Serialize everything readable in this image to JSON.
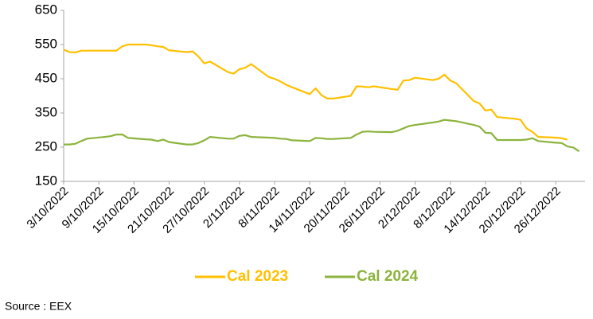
{
  "chart_data": {
    "type": "line",
    "x": [
      "3/10/2022",
      "4/10/2022",
      "5/10/2022",
      "6/10/2022",
      "7/10/2022",
      "10/10/2022",
      "11/10/2022",
      "12/10/2022",
      "13/10/2022",
      "14/10/2022",
      "17/10/2022",
      "18/10/2022",
      "19/10/2022",
      "20/10/2022",
      "21/10/2022",
      "24/10/2022",
      "25/10/2022",
      "26/10/2022",
      "27/10/2022",
      "28/10/2022",
      "31/10/2022",
      "1/11/2022",
      "2/11/2022",
      "3/11/2022",
      "4/11/2022",
      "7/11/2022",
      "8/11/2022",
      "9/11/2022",
      "10/11/2022",
      "11/11/2022",
      "14/11/2022",
      "15/11/2022",
      "16/11/2022",
      "17/11/2022",
      "18/11/2022",
      "21/11/2022",
      "22/11/2022",
      "23/11/2022",
      "24/11/2022",
      "25/11/2022",
      "28/11/2022",
      "29/11/2022",
      "30/11/2022",
      "1/12/2022",
      "2/12/2022",
      "5/12/2022",
      "6/12/2022",
      "7/12/2022",
      "8/12/2022",
      "9/12/2022",
      "12/12/2022",
      "13/12/2022",
      "14/12/2022",
      "15/12/2022",
      "16/12/2022",
      "19/12/2022",
      "20/12/2022",
      "21/12/2022",
      "22/12/2022",
      "23/12/2022",
      "26/12/2022",
      "27/12/2022",
      "28/12/2022",
      "29/12/2022",
      "30/12/2022"
    ],
    "series": [
      {
        "name": "Cal 2023",
        "color": "#ffc000",
        "values": [
          535,
          528,
          527,
          532,
          532,
          532,
          532,
          532,
          545,
          550,
          550,
          548,
          545,
          543,
          533,
          528,
          530,
          515,
          495,
          500,
          470,
          465,
          478,
          482,
          493,
          455,
          450,
          442,
          432,
          425,
          405,
          422,
          402,
          392,
          392,
          400,
          428,
          427,
          425,
          428,
          420,
          418,
          445,
          446,
          453,
          446,
          450,
          462,
          445,
          437,
          385,
          378,
          357,
          360,
          338,
          333,
          330,
          305,
          295,
          280,
          278,
          276,
          272,
          null,
          null
        ]
      },
      {
        "name": "Cal 2024",
        "color": "#8cb33c",
        "values": [
          258,
          258,
          260,
          268,
          275,
          280,
          282,
          287,
          287,
          277,
          273,
          272,
          268,
          272,
          265,
          258,
          258,
          262,
          270,
          280,
          275,
          275,
          283,
          285,
          280,
          278,
          277,
          275,
          274,
          270,
          268,
          277,
          276,
          274,
          274,
          277,
          287,
          295,
          296,
          295,
          294,
          298,
          305,
          312,
          315,
          322,
          325,
          330,
          328,
          326,
          315,
          310,
          292,
          291,
          271,
          271,
          271,
          272,
          276,
          268,
          263,
          262,
          252,
          249,
          238
        ]
      }
    ],
    "xlim": [
      "3/10/2022",
      "31/12/2022"
    ],
    "xticks": [
      "3/10/2022",
      "9/10/2022",
      "15/10/2022",
      "21/10/2022",
      "27/10/2022",
      "2/11/2022",
      "8/11/2022",
      "14/11/2022",
      "20/11/2022",
      "26/11/2022",
      "2/12/2022",
      "8/12/2022",
      "14/12/2022",
      "20/12/2022",
      "26/12/2022"
    ],
    "ylim": [
      150,
      650
    ],
    "yticks": [
      150,
      250,
      350,
      450,
      550,
      650
    ],
    "legend": "bottom",
    "source": "Source : EEX"
  }
}
